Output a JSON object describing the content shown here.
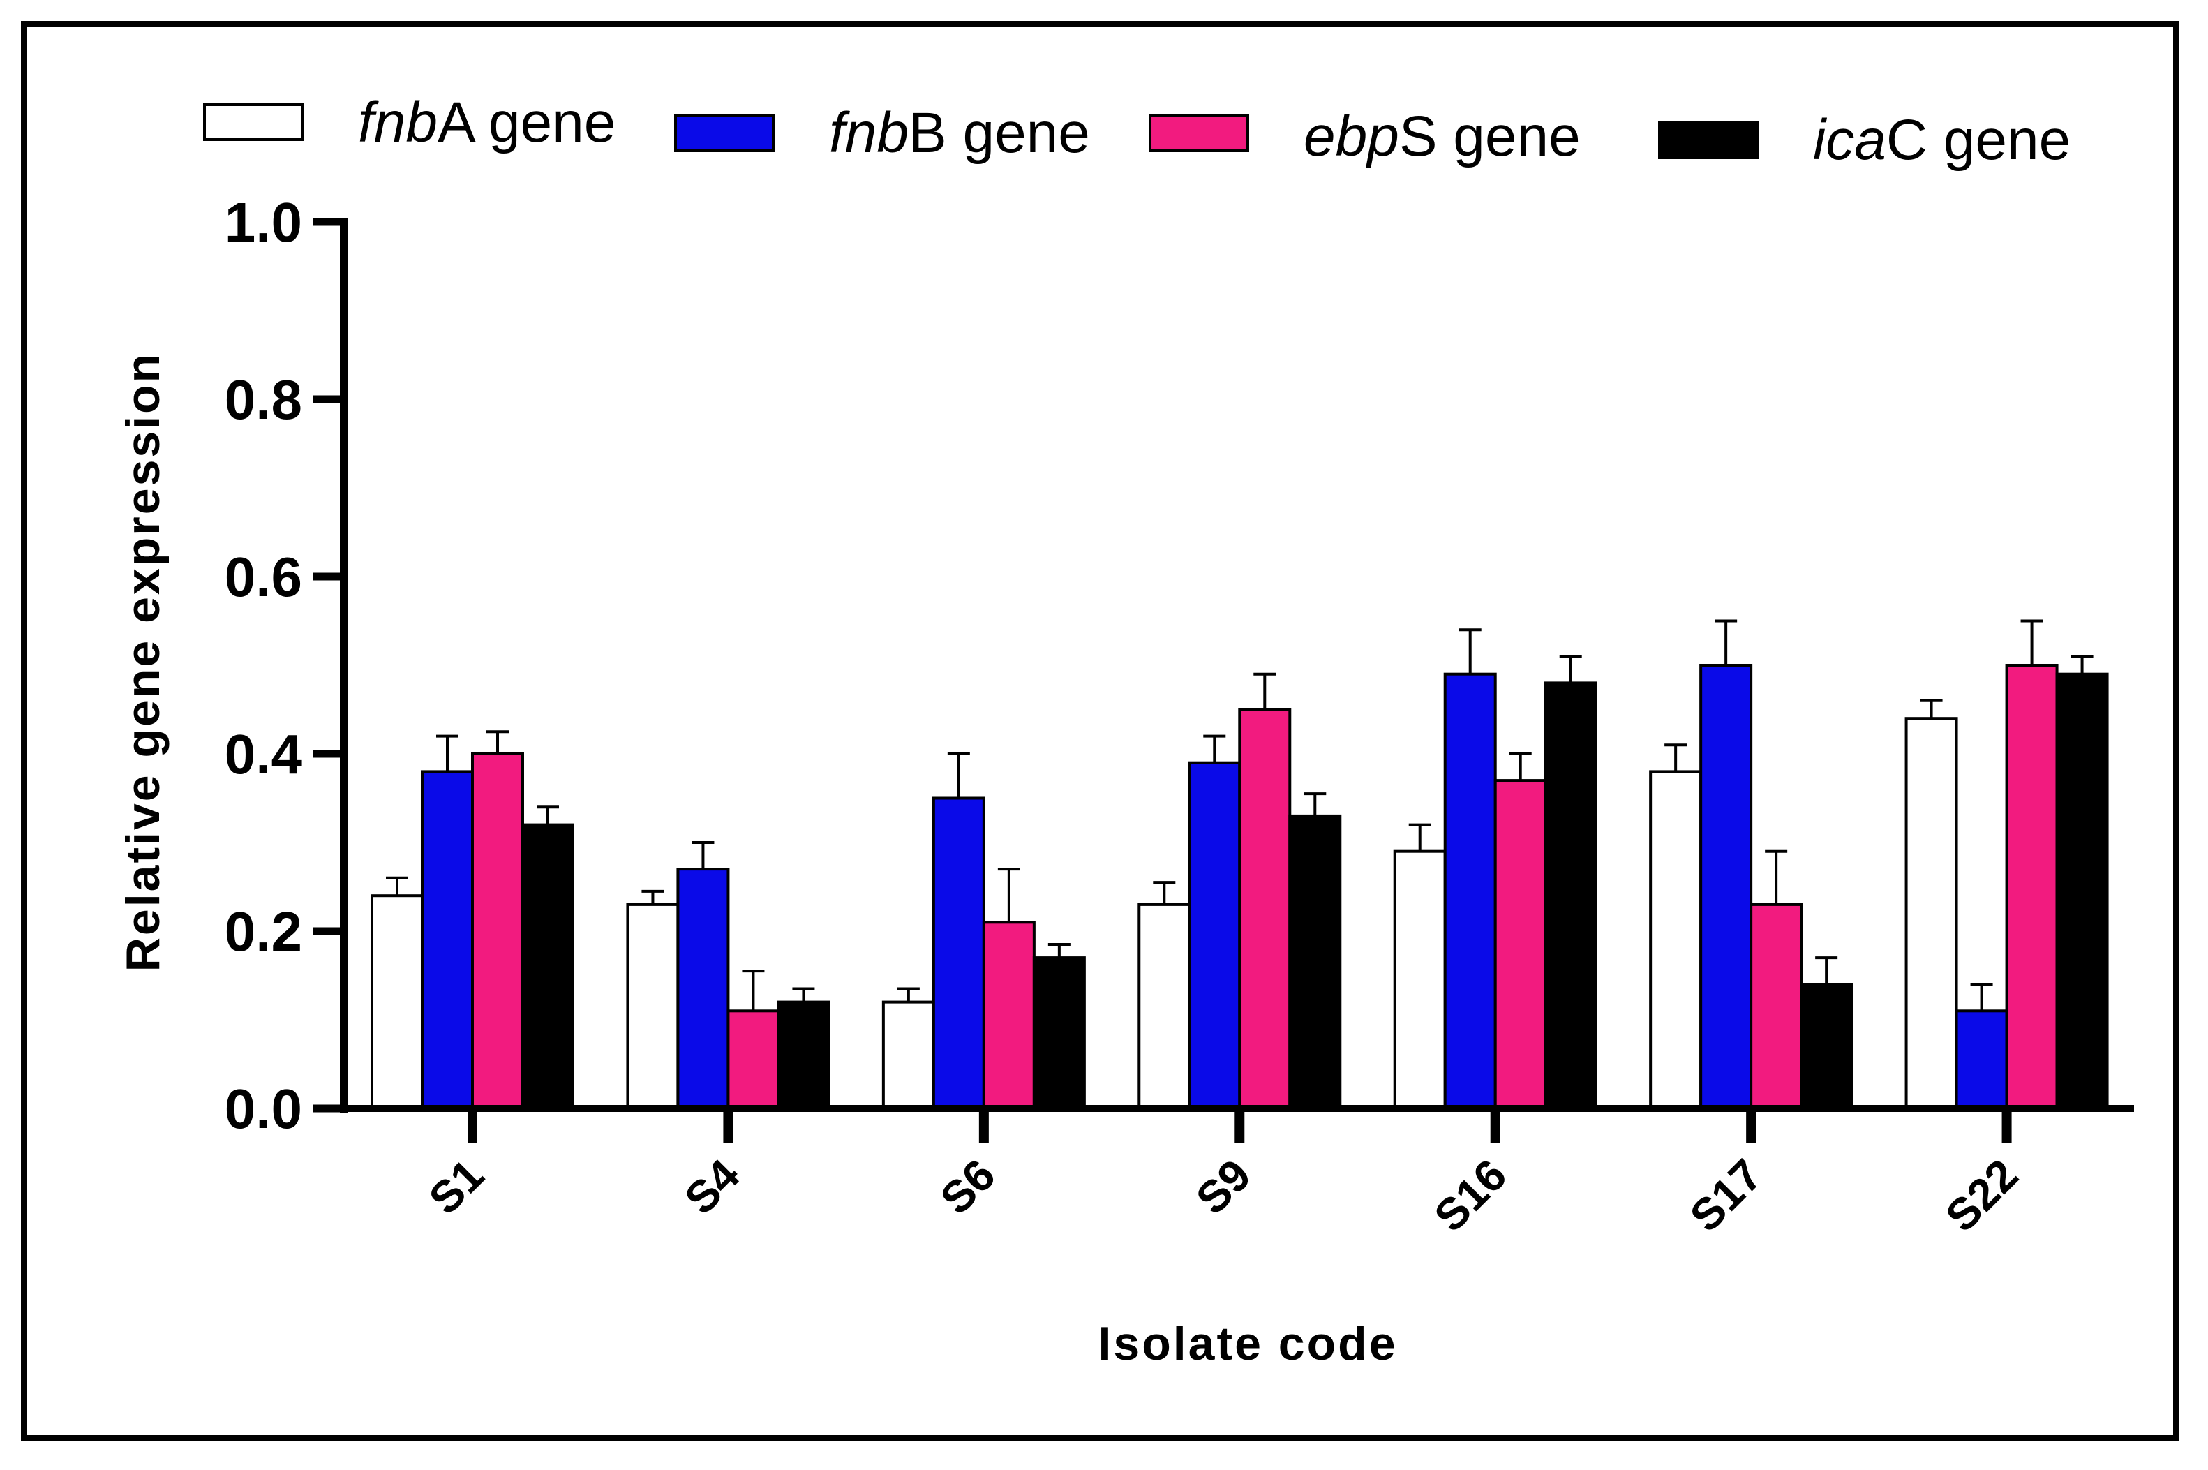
{
  "chart_data": {
    "type": "bar",
    "title": "",
    "xlabel": "Isolate code",
    "ylabel": "Relative gene expression",
    "ylim": [
      0,
      1.0
    ],
    "yticks": [
      0.0,
      0.2,
      0.4,
      0.6,
      0.8,
      1.0
    ],
    "ytick_labels": [
      "0.0",
      "0.2",
      "0.4",
      "0.6",
      "0.8",
      "1.0"
    ],
    "categories": [
      "S1",
      "S4",
      "S6",
      "S9",
      "S16",
      "S17",
      "S22"
    ],
    "legend_position": "top",
    "series": [
      {
        "name": "fnbA gene",
        "italic": "fnb",
        "suffix": "A gene",
        "color": "#ffffff",
        "values": [
          0.24,
          0.23,
          0.12,
          0.23,
          0.29,
          0.38,
          0.44
        ],
        "errors": [
          0.02,
          0.015,
          0.015,
          0.025,
          0.03,
          0.03,
          0.02
        ]
      },
      {
        "name": "fnbB gene",
        "italic": "fnb",
        "suffix": "B gene",
        "color": "#0a0ae8",
        "values": [
          0.38,
          0.27,
          0.35,
          0.39,
          0.49,
          0.5,
          0.11
        ],
        "errors": [
          0.04,
          0.03,
          0.05,
          0.03,
          0.05,
          0.05,
          0.03
        ]
      },
      {
        "name": "ebpS gene",
        "italic": "ebp",
        "suffix": "S gene",
        "color": "#f21b7f",
        "values": [
          0.4,
          0.11,
          0.21,
          0.45,
          0.37,
          0.23,
          0.5
        ],
        "errors": [
          0.025,
          0.045,
          0.06,
          0.04,
          0.03,
          0.06,
          0.05
        ]
      },
      {
        "name": "icaC gene",
        "italic": "ica",
        "suffix": "C gene",
        "color": "#000000",
        "values": [
          0.32,
          0.12,
          0.17,
          0.33,
          0.48,
          0.14,
          0.49
        ],
        "errors": [
          0.02,
          0.015,
          0.015,
          0.025,
          0.03,
          0.03,
          0.02
        ]
      }
    ]
  }
}
